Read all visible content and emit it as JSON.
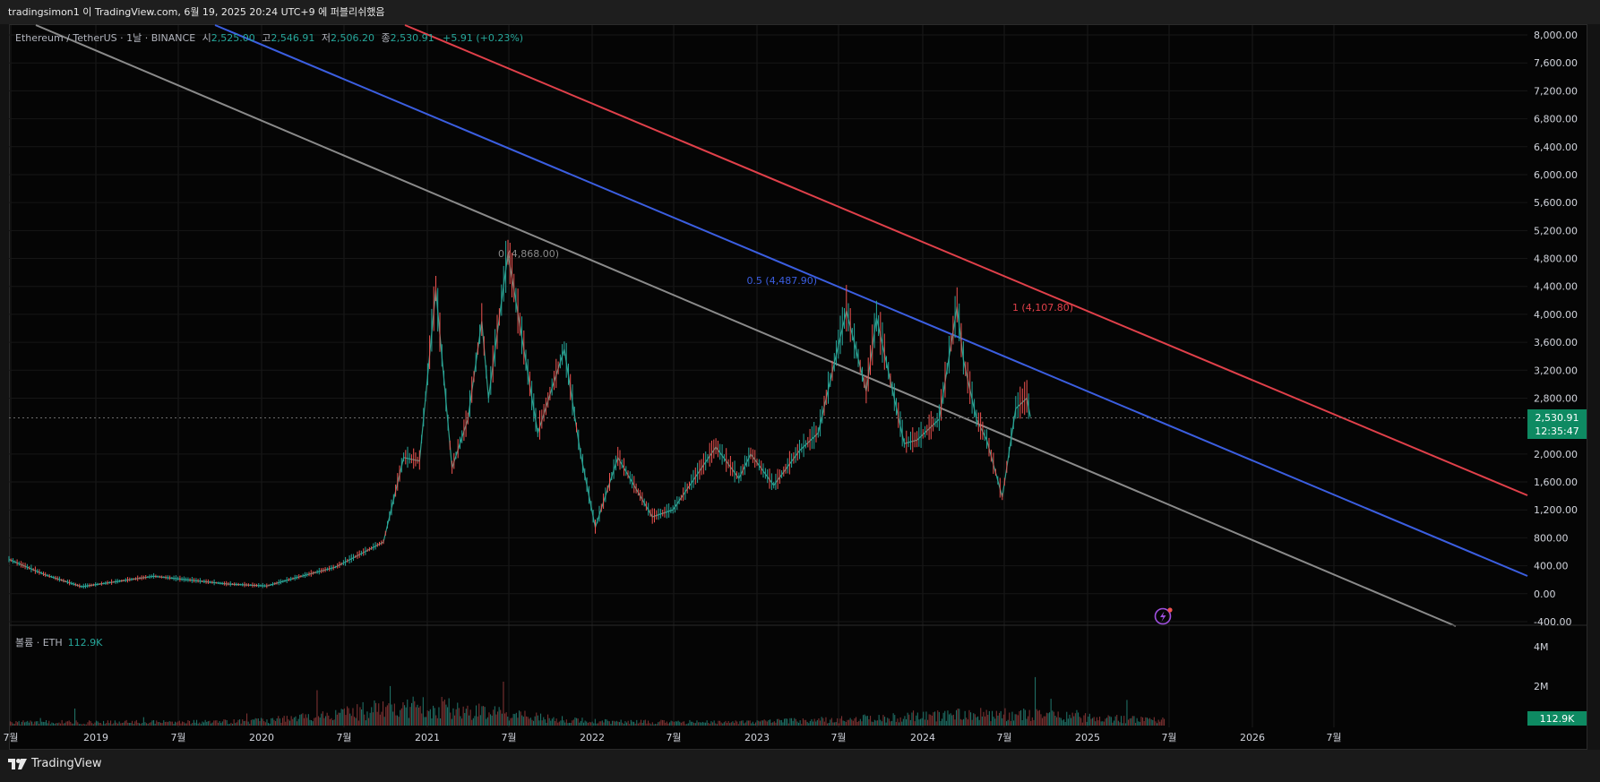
{
  "header": {
    "publish_text": "tradingsimon1 이 TradingView.com, 6월 19, 2025 20:24 UTC+9 에 퍼블리쉬했음"
  },
  "legend": {
    "symbol": "Ethereum / TetherUS · 1날 · BINANCE",
    "open_label": "시",
    "open": "2,525.00",
    "high_label": "고",
    "high": "2,546.91",
    "low_label": "저",
    "low": "2,506.20",
    "close_label": "종",
    "close": "2,530.91",
    "change": "+5.91 (+0.23%)"
  },
  "volume_legend": {
    "label": "볼륨 · ETH",
    "value": "112.9K"
  },
  "price_badge": {
    "price": "2,530.91",
    "countdown": "12:35:47"
  },
  "volume_badge": "112.9K",
  "brand": "TradingView",
  "colors": {
    "background": "#050505",
    "up": "#26a69a",
    "down": "#ef5350",
    "line_gray": "#8a8a8a",
    "line_blue": "#3b5ee0",
    "line_red": "#e0404a",
    "axis_text": "#d1d4dc"
  },
  "chart_data": [
    {
      "type": "line",
      "title": "",
      "y_ticks": [
        "8,000.00",
        "7,600.00",
        "7,200.00",
        "6,800.00",
        "6,400.00",
        "6,000.00",
        "5,600.00",
        "5,200.00",
        "4,800.00",
        "4,400.00",
        "4,000.00",
        "3,600.00",
        "3,200.00",
        "2,800.00",
        "2,000.00",
        "1,600.00",
        "1,200.00",
        "800.00",
        "400.00",
        "0.00",
        "-400.00"
      ],
      "ylim": [
        -400,
        8000
      ],
      "x_ticks": [
        "7월",
        "2019",
        "7월",
        "2020",
        "7월",
        "2021",
        "7월",
        "2022",
        "7월",
        "2023",
        "7월",
        "2024",
        "7월",
        "2025",
        "7월",
        "2026",
        "7월"
      ],
      "series": [
        {
          "values": [
            [
              "2018-06-01",
              490
            ],
            [
              "2018-09-01",
              270
            ],
            [
              "2018-12-01",
              100
            ],
            [
              "2019-06-01",
              250
            ],
            [
              "2019-12-01",
              140
            ],
            [
              "2020-03-12",
              110
            ],
            [
              "2020-06-01",
              240
            ],
            [
              "2020-09-01",
              380
            ],
            [
              "2020-12-31",
              740
            ],
            [
              "2021-02-20",
              1950
            ],
            [
              "2021-04-01",
              1900
            ],
            [
              "2021-05-12",
              4350
            ],
            [
              "2021-06-22",
              1800
            ],
            [
              "2021-08-01",
              2500
            ],
            [
              "2021-09-05",
              3900
            ],
            [
              "2021-09-22",
              2800
            ],
            [
              "2021-11-10",
              4868
            ],
            [
              "2022-01-24",
              2300
            ],
            [
              "2022-04-01",
              3500
            ],
            [
              "2022-05-12",
              2000
            ],
            [
              "2022-06-18",
              950
            ],
            [
              "2022-08-14",
              1950
            ],
            [
              "2022-11-09",
              1100
            ],
            [
              "2022-12-31",
              1200
            ],
            [
              "2023-04-18",
              2100
            ],
            [
              "2023-06-15",
              1650
            ],
            [
              "2023-07-15",
              2000
            ],
            [
              "2023-09-11",
              1550
            ],
            [
              "2023-11-15",
              2050
            ],
            [
              "2024-01-01",
              2300
            ],
            [
              "2024-03-12",
              4050
            ],
            [
              "2024-05-01",
              2900
            ],
            [
              "2024-05-27",
              3950
            ],
            [
              "2024-08-05",
              2150
            ],
            [
              "2024-09-06",
              2200
            ],
            [
              "2024-11-01",
              2500
            ],
            [
              "2024-12-16",
              4107.8
            ],
            [
              "2025-01-01",
              3350
            ],
            [
              "2025-02-03",
              2500
            ],
            [
              "2025-03-01",
              2200
            ],
            [
              "2025-04-09",
              1385
            ],
            [
              "2025-05-13",
              2650
            ],
            [
              "2025-06-10",
              2800
            ],
            [
              "2025-06-19",
              2530.91
            ]
          ]
        }
      ],
      "annotations": [
        {
          "text": "0 (4,868.00)",
          "color": "#8a8a8a"
        },
        {
          "text": "0.5 (4,487.90)",
          "color": "#3b5ee0"
        },
        {
          "text": "1 (4,107.80)",
          "color": "#e0404a"
        }
      ]
    },
    {
      "type": "bar",
      "title": "",
      "y_ticks": [
        "4M",
        "2M"
      ],
      "ylim": [
        0,
        5000000
      ]
    }
  ]
}
